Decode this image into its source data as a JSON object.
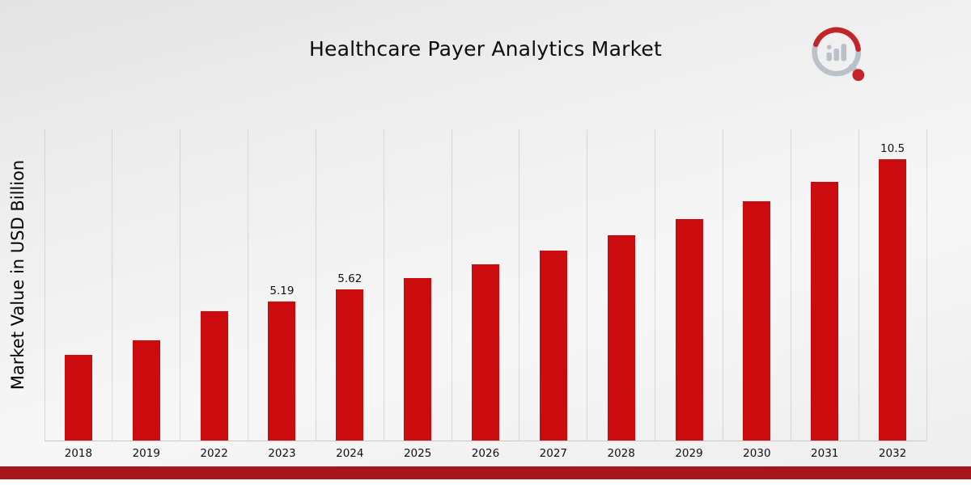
{
  "title": "Healthcare Payer Analytics Market",
  "y_axis_label": "Market Value in USD Billion",
  "chart_data": {
    "type": "bar",
    "title": "Healthcare Payer Analytics Market",
    "xlabel": "",
    "ylabel": "Market Value in USD Billion",
    "categories": [
      "2018",
      "2019",
      "2022",
      "2023",
      "2024",
      "2025",
      "2026",
      "2027",
      "2028",
      "2029",
      "2030",
      "2031",
      "2032"
    ],
    "values": [
      3.2,
      3.75,
      4.81,
      5.19,
      5.62,
      6.07,
      6.56,
      7.08,
      7.65,
      8.26,
      8.92,
      9.64,
      10.5
    ],
    "data_labels": [
      "",
      "",
      "",
      "5.19",
      "5.62",
      "",
      "",
      "",
      "",
      "",
      "",
      "",
      "10.5"
    ],
    "ylim": [
      0,
      11.6
    ],
    "grid": "vertical-only",
    "legend": "none"
  },
  "colors": {
    "bar": "#cb0b0d",
    "accent_stripe": "#a8151c",
    "gridline": "#d6d6d6",
    "text": "#101010"
  },
  "logo": {
    "name": "chart-magnifier-logo"
  }
}
